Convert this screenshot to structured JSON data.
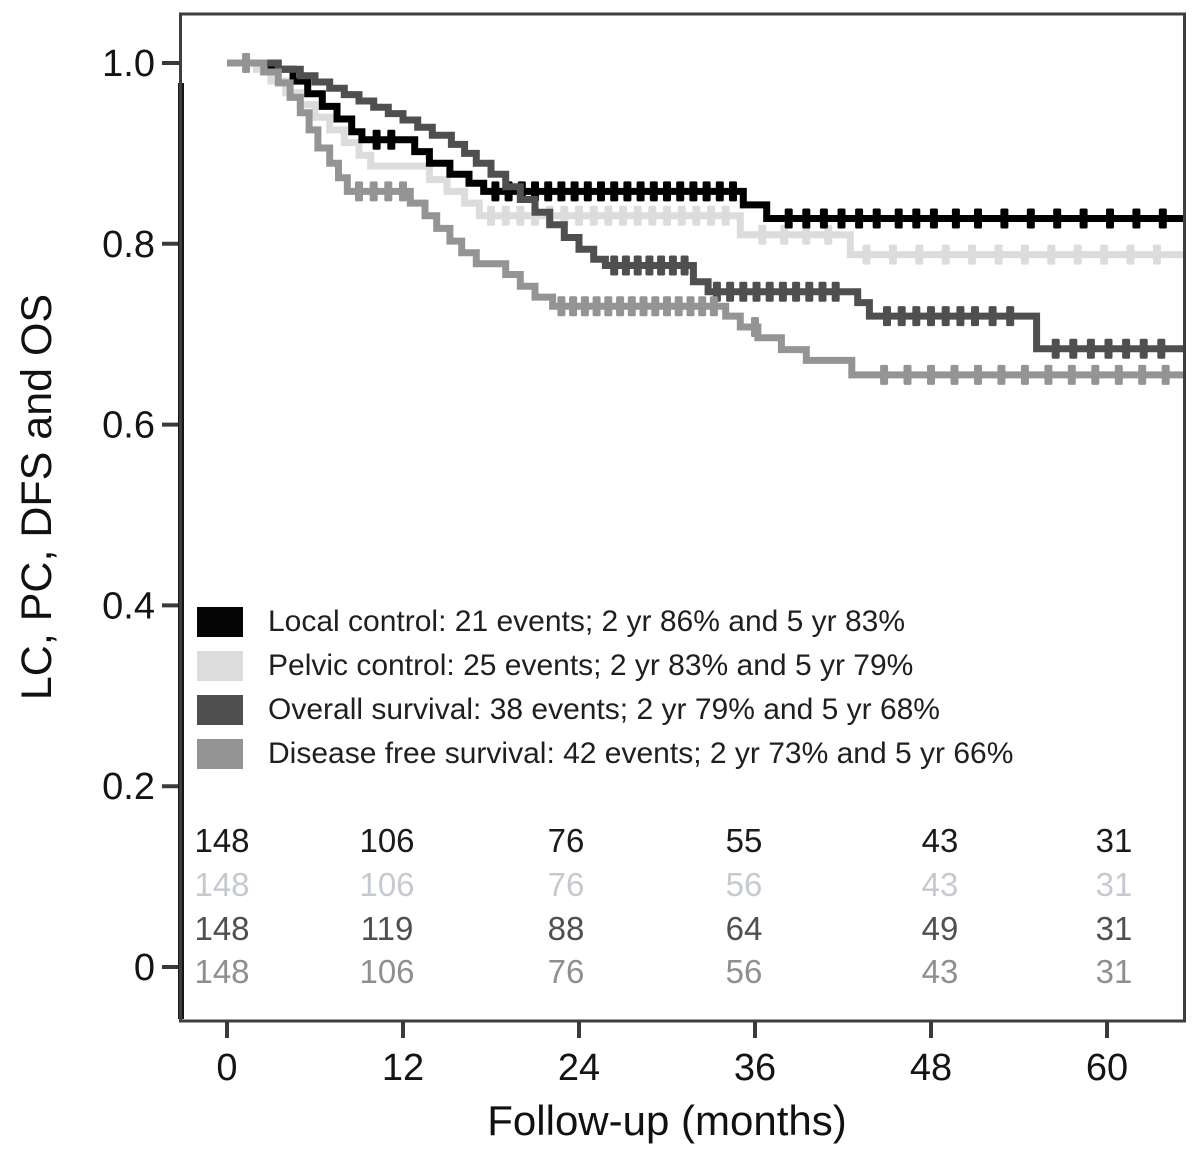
{
  "chart_data": {
    "type": "line",
    "step": true,
    "title": "",
    "xlabel": "Follow-up (months)",
    "ylabel": "LC, PC, DFS and OS",
    "xlim": [
      0,
      65.3
    ],
    "ylim": [
      0,
      1.0
    ],
    "grid": false,
    "legend_position": "inside-left-middle",
    "xticks": [
      {
        "value": 0,
        "label": "0"
      },
      {
        "value": 12,
        "label": "12"
      },
      {
        "value": 24,
        "label": "24"
      },
      {
        "value": 36,
        "label": "36"
      },
      {
        "value": 48,
        "label": "48"
      },
      {
        "value": 60,
        "label": "60"
      }
    ],
    "yticks": [
      {
        "value": 1.0,
        "label": "1.0"
      },
      {
        "value": 0.8,
        "label": "0.8"
      },
      {
        "value": 0.6,
        "label": "0.6"
      },
      {
        "value": 0.4,
        "label": "0.4"
      },
      {
        "value": 0.2,
        "label": "0.2"
      },
      {
        "value": 0.0,
        "label": "0"
      }
    ],
    "risk_table_times": [
      0,
      12,
      24,
      36,
      48,
      60
    ],
    "series": [
      {
        "name": "Local control",
        "color": "#000000",
        "table_color": "#1a1a1a",
        "legend_label": "Local control: 21 events; 2 yr 86% and 5 yr 83%",
        "at_risk": [
          148,
          106,
          76,
          55,
          43,
          31
        ],
        "points": [
          [
            0,
            1.0
          ],
          [
            3,
            0.993
          ],
          [
            4.5,
            0.98
          ],
          [
            5.5,
            0.966
          ],
          [
            6.5,
            0.952
          ],
          [
            7.5,
            0.938
          ],
          [
            8.5,
            0.924
          ],
          [
            9.2,
            0.915
          ],
          [
            12.8,
            0.902
          ],
          [
            13.8,
            0.889
          ],
          [
            15.2,
            0.877
          ],
          [
            16.5,
            0.867
          ],
          [
            17.5,
            0.858
          ],
          [
            35.2,
            0.843
          ],
          [
            36.8,
            0.828
          ],
          [
            65.3,
            0.828
          ]
        ],
        "censor_times": [
          10.2,
          11.2,
          18.3,
          19.2,
          20.1,
          21.0,
          21.9,
          22.8,
          23.7,
          24.6,
          25.5,
          26.4,
          27.3,
          28.2,
          29.1,
          30.0,
          30.9,
          31.8,
          32.7,
          33.6,
          34.5,
          38.3,
          39.5,
          40.7,
          41.9,
          43.1,
          44.3,
          45.8,
          47.0,
          48.2,
          49.7,
          51.2,
          53.0,
          54.8,
          56.6,
          58.4,
          60.2,
          62.0,
          63.8
        ]
      },
      {
        "name": "Pelvic control",
        "color": "#dcdcdc",
        "table_color": "#c6cad0",
        "legend_label": "Pelvic control: 25 events; 2 yr 83% and 5 yr 79%",
        "at_risk": [
          148,
          106,
          76,
          56,
          43,
          31
        ],
        "points": [
          [
            0,
            1.0
          ],
          [
            2,
            0.993
          ],
          [
            3,
            0.98
          ],
          [
            4,
            0.967
          ],
          [
            5,
            0.954
          ],
          [
            6,
            0.94
          ],
          [
            7,
            0.926
          ],
          [
            8,
            0.912
          ],
          [
            9,
            0.898
          ],
          [
            9.8,
            0.886
          ],
          [
            13.8,
            0.871
          ],
          [
            15,
            0.858
          ],
          [
            16.2,
            0.845
          ],
          [
            17.2,
            0.831
          ],
          [
            35,
            0.81
          ],
          [
            42.5,
            0.788
          ],
          [
            65.3,
            0.788
          ]
        ],
        "censor_times": [
          18.0,
          19.0,
          20.0,
          21.0,
          22.0,
          23.0,
          24.0,
          25.0,
          26.0,
          27.0,
          28.0,
          29.0,
          30.0,
          31.0,
          32.0,
          33.0,
          34.0,
          36.5,
          38.0,
          39.5,
          41.0,
          43.6,
          45.4,
          47.2,
          49.0,
          50.8,
          52.6,
          54.4,
          56.2,
          58.0,
          59.8,
          61.6,
          63.4
        ]
      },
      {
        "name": "Overall survival",
        "color": "#4f4f4f",
        "table_color": "#4f4f4f",
        "legend_label": "Overall survival: 38 events; 2 yr 79% and 5 yr 68%",
        "at_risk": [
          148,
          119,
          88,
          64,
          49,
          31
        ],
        "points": [
          [
            0,
            1.0
          ],
          [
            3.5,
            0.993
          ],
          [
            5,
            0.986
          ],
          [
            6,
            0.979
          ],
          [
            7,
            0.972
          ],
          [
            8,
            0.965
          ],
          [
            9,
            0.958
          ],
          [
            10,
            0.951
          ],
          [
            11,
            0.944
          ],
          [
            12,
            0.937
          ],
          [
            13,
            0.929
          ],
          [
            14,
            0.92
          ],
          [
            15.3,
            0.91
          ],
          [
            16.2,
            0.9
          ],
          [
            17,
            0.889
          ],
          [
            18,
            0.877
          ],
          [
            19,
            0.863
          ],
          [
            20,
            0.849
          ],
          [
            21,
            0.835
          ],
          [
            22,
            0.821
          ],
          [
            23,
            0.807
          ],
          [
            24,
            0.794
          ],
          [
            25,
            0.783
          ],
          [
            25.8,
            0.776
          ],
          [
            31.8,
            0.758
          ],
          [
            32.8,
            0.747
          ],
          [
            43,
            0.735
          ],
          [
            43.8,
            0.72
          ],
          [
            55.2,
            0.684
          ],
          [
            65.3,
            0.684
          ]
        ],
        "censor_times": [
          26.4,
          27.2,
          28.0,
          28.8,
          29.6,
          30.4,
          31.2,
          33.4,
          34.3,
          35.2,
          36.1,
          37.0,
          37.9,
          38.8,
          39.7,
          40.6,
          41.5,
          45.0,
          46.0,
          47.0,
          48.0,
          49.0,
          50.0,
          51.0,
          52.2,
          53.4,
          56.5,
          57.7,
          58.9,
          60.1,
          61.3,
          62.5,
          63.7
        ]
      },
      {
        "name": "Disease free survival",
        "color": "#949494",
        "table_color": "#8f8f8f",
        "legend_label": "Disease free survival: 42 events; 2 yr 73% and 5 yr 66%",
        "at_risk": [
          148,
          106,
          76,
          56,
          43,
          31
        ],
        "points": [
          [
            0,
            1.0
          ],
          [
            2.5,
            0.99
          ],
          [
            3.5,
            0.978
          ],
          [
            4.3,
            0.962
          ],
          [
            5,
            0.945
          ],
          [
            5.6,
            0.926
          ],
          [
            6.2,
            0.906
          ],
          [
            7,
            0.889
          ],
          [
            7.6,
            0.873
          ],
          [
            8.2,
            0.858
          ],
          [
            12.5,
            0.845
          ],
          [
            13.5,
            0.831
          ],
          [
            14.3,
            0.817
          ],
          [
            15.2,
            0.803
          ],
          [
            16,
            0.79
          ],
          [
            17,
            0.778
          ],
          [
            19,
            0.766
          ],
          [
            20,
            0.753
          ],
          [
            21,
            0.741
          ],
          [
            22.2,
            0.731
          ],
          [
            34,
            0.72
          ],
          [
            35,
            0.708
          ],
          [
            36.2,
            0.696
          ],
          [
            37.8,
            0.683
          ],
          [
            39.5,
            0.671
          ],
          [
            42.6,
            0.655
          ],
          [
            65.3,
            0.655
          ]
        ],
        "censor_times": [
          1.3,
          9.0,
          10.0,
          11.0,
          12.0,
          22.8,
          23.6,
          24.4,
          25.2,
          26.0,
          26.8,
          27.6,
          28.4,
          29.2,
          30.0,
          30.8,
          31.6,
          32.4,
          33.2,
          36.0,
          44.8,
          46.4,
          48.0,
          49.6,
          51.2,
          52.8,
          54.4,
          56.0,
          57.6,
          59.2,
          60.8,
          62.4,
          64.0
        ]
      }
    ]
  }
}
